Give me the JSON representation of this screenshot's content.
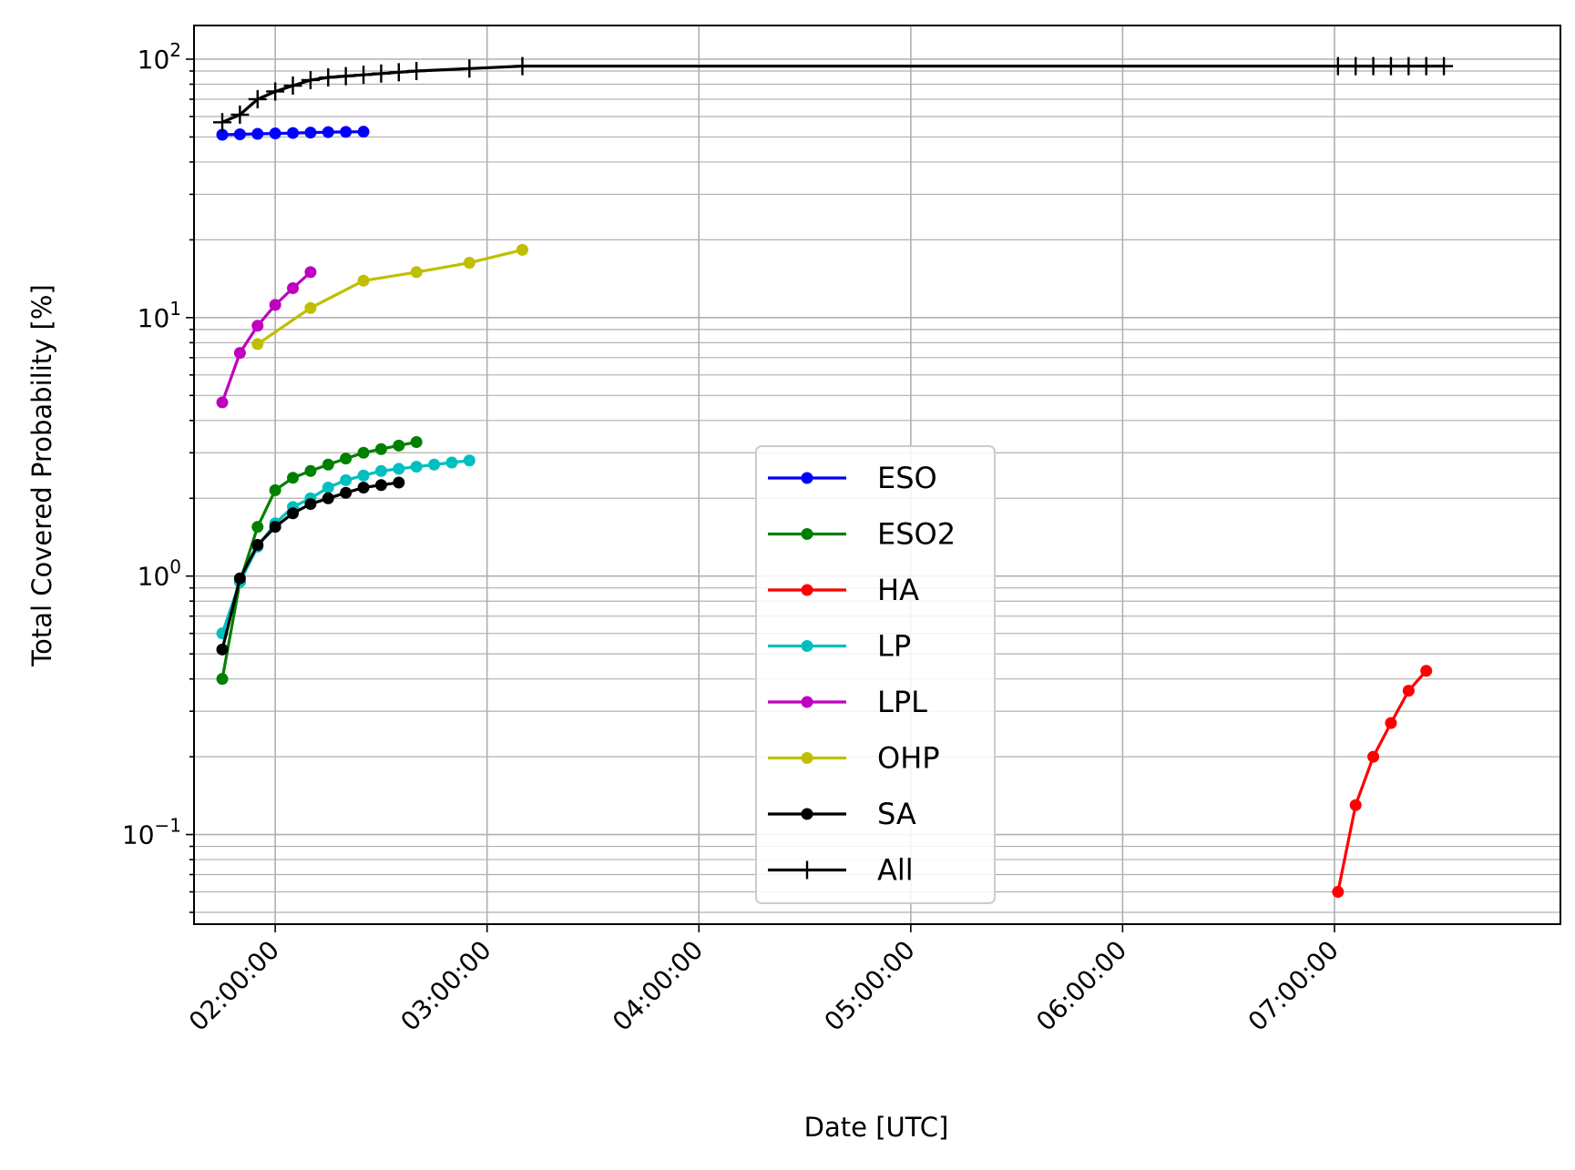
{
  "chart_data": {
    "type": "line",
    "xlabel": "Date [UTC]",
    "ylabel": "Total Covered Probability [%]",
    "yscale": "log",
    "xlim": [
      "01:37:00",
      "08:04:00"
    ],
    "ylim": [
      0.045,
      135
    ],
    "grid": "on (major and minor)",
    "legend_position": "lower-center",
    "x_ticks": [
      "02:00:00",
      "03:00:00",
      "04:00:00",
      "05:00:00",
      "06:00:00",
      "07:00:00"
    ],
    "y_ticks": [
      {
        "base": "10",
        "exp": "2",
        "value": 100
      },
      {
        "base": "10",
        "exp": "1",
        "value": 10
      },
      {
        "base": "10",
        "exp": "0",
        "value": 1
      },
      {
        "base": "10",
        "exp": "−1",
        "value": 0.1
      }
    ],
    "series": [
      {
        "name": "ESO",
        "color": "#0000ff",
        "marker": "dot",
        "x": [
          "01:45:00",
          "01:50:00",
          "01:55:00",
          "02:00:00",
          "02:05:00",
          "02:10:00",
          "02:15:00",
          "02:20:00",
          "02:25:00"
        ],
        "y": [
          51.0,
          51.2,
          51.4,
          51.6,
          51.8,
          52.0,
          52.2,
          52.3,
          52.4
        ]
      },
      {
        "name": "ESO2",
        "color": "#008000",
        "marker": "dot",
        "x": [
          "01:45:00",
          "01:50:00",
          "01:55:00",
          "02:00:00",
          "02:05:00",
          "02:10:00",
          "02:15:00",
          "02:20:00",
          "02:25:00",
          "02:30:00",
          "02:35:00",
          "02:40:00"
        ],
        "y": [
          0.4,
          0.95,
          1.55,
          2.15,
          2.4,
          2.55,
          2.7,
          2.85,
          3.0,
          3.1,
          3.2,
          3.3
        ]
      },
      {
        "name": "HA",
        "color": "#ff0000",
        "marker": "dot",
        "x": [
          "07:01:00",
          "07:06:00",
          "07:11:00",
          "07:16:00",
          "07:21:00",
          "07:26:00"
        ],
        "y": [
          0.06,
          0.13,
          0.2,
          0.27,
          0.36,
          0.43
        ]
      },
      {
        "name": "LP",
        "color": "#00bfbf",
        "marker": "dot",
        "x": [
          "01:45:00",
          "01:50:00",
          "01:55:00",
          "02:00:00",
          "02:05:00",
          "02:10:00",
          "02:15:00",
          "02:20:00",
          "02:25:00",
          "02:30:00",
          "02:35:00",
          "02:40:00",
          "02:45:00",
          "02:50:00",
          "02:55:00"
        ],
        "y": [
          0.6,
          0.95,
          1.3,
          1.6,
          1.85,
          2.0,
          2.2,
          2.35,
          2.45,
          2.55,
          2.6,
          2.65,
          2.7,
          2.75,
          2.8
        ]
      },
      {
        "name": "LPL",
        "color": "#bf00bf",
        "marker": "dot",
        "x": [
          "01:45:00",
          "01:50:00",
          "01:55:00",
          "02:00:00",
          "02:05:00",
          "02:10:00"
        ],
        "y": [
          4.7,
          7.3,
          9.3,
          11.2,
          13.0,
          15.0
        ]
      },
      {
        "name": "OHP",
        "color": "#bfbf00",
        "marker": "dot",
        "x": [
          "01:55:00",
          "02:10:00",
          "02:25:00",
          "02:40:00",
          "02:55:00",
          "03:10:00"
        ],
        "y": [
          7.9,
          10.9,
          13.9,
          15.0,
          16.3,
          18.3
        ]
      },
      {
        "name": "SA",
        "color": "#000000",
        "marker": "dot",
        "x": [
          "01:45:00",
          "01:50:00",
          "01:55:00",
          "02:00:00",
          "02:05:00",
          "02:10:00",
          "02:15:00",
          "02:20:00",
          "02:25:00",
          "02:30:00",
          "02:35:00"
        ],
        "y": [
          0.52,
          0.98,
          1.32,
          1.55,
          1.75,
          1.9,
          2.0,
          2.1,
          2.2,
          2.25,
          2.3
        ]
      },
      {
        "name": "All",
        "color": "#000000",
        "marker": "plus",
        "x": [
          "01:45:00",
          "01:50:00",
          "01:55:00",
          "02:00:00",
          "02:05:00",
          "02:10:00",
          "02:15:00",
          "02:20:00",
          "02:25:00",
          "02:30:00",
          "02:35:00",
          "02:40:00",
          "02:55:00",
          "03:10:00",
          "07:01:00",
          "07:06:00",
          "07:11:00",
          "07:16:00",
          "07:21:00",
          "07:26:00",
          "07:31:00"
        ],
        "y": [
          57,
          61,
          70,
          75,
          79,
          83,
          85,
          86,
          87,
          88,
          89,
          90,
          92,
          94,
          94,
          94,
          94,
          94,
          94,
          94,
          94
        ]
      }
    ]
  }
}
